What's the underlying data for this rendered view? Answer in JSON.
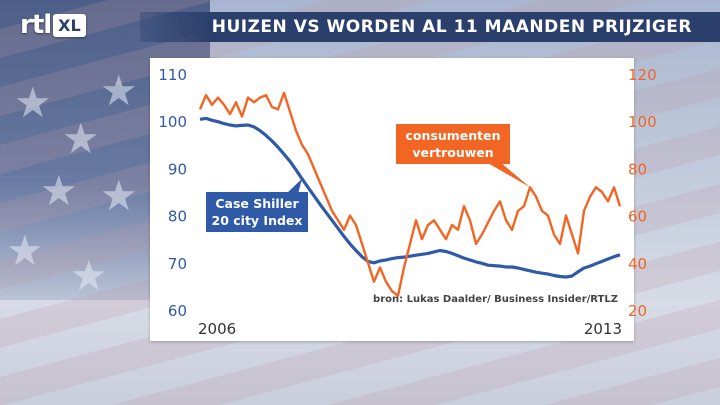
{
  "header": {
    "logo_text": "rtl",
    "logo_badge": "XL",
    "title": "HUIZEN VS WORDEN AL 11 MAANDEN PRIJZIGER"
  },
  "chart_data": {
    "type": "line",
    "title": "HUIZEN VS WORDEN AL 11 MAANDEN PRIJZIGER",
    "x_start_label": "2006",
    "x_end_label": "2013",
    "left_axis": {
      "ticks": [
        110,
        100,
        90,
        80,
        70,
        60
      ],
      "ylim": [
        60,
        110
      ],
      "color": "#2e5aa8"
    },
    "right_axis": {
      "ticks": [
        120,
        100,
        80,
        60,
        40,
        20
      ],
      "ylim": [
        20,
        120
      ],
      "color": "#f26522"
    },
    "source": "bron: Lukas Daalder/ Business Insider/RTLZ",
    "series": [
      {
        "name": "Case Shiller 20 city Index",
        "label": "Case Shiller\n20 city Index",
        "axis": "left",
        "color": "#2e5aa8",
        "values": [
          100.4,
          100.6,
          100.2,
          99.9,
          99.5,
          99.2,
          99.0,
          99.1,
          99.2,
          98.8,
          98.0,
          97.0,
          95.8,
          94.5,
          93.0,
          91.5,
          89.7,
          87.8,
          86.0,
          84.2,
          82.4,
          80.7,
          79.0,
          77.3,
          75.6,
          74.0,
          72.6,
          71.3,
          70.3,
          70.0,
          70.4,
          70.6,
          70.9,
          71.1,
          71.2,
          71.4,
          71.6,
          71.8,
          72.0,
          72.3,
          72.6,
          72.4,
          72.0,
          71.5,
          71.0,
          70.6,
          70.2,
          69.9,
          69.5,
          69.4,
          69.3,
          69.1,
          69.1,
          68.9,
          68.6,
          68.3,
          68.0,
          67.8,
          67.6,
          67.3,
          67.1,
          67.0,
          67.2,
          68.1,
          68.9,
          69.3,
          69.8,
          70.3,
          70.8,
          71.3,
          71.7
        ]
      },
      {
        "name": "consumenten vertrouwen",
        "label": "consumenten\nvertrouwen",
        "axis": "right",
        "color": "#f26522",
        "values": [
          105,
          111,
          107,
          110,
          107,
          103,
          108,
          102,
          110,
          108,
          110,
          111,
          106,
          105,
          112,
          104,
          96,
          90,
          86,
          80,
          74,
          68,
          62,
          58,
          54,
          60,
          56,
          48,
          40,
          32,
          38,
          32,
          28,
          26,
          38,
          48,
          58,
          50,
          56,
          58,
          54,
          50,
          56,
          54,
          64,
          58,
          48,
          52,
          57,
          62,
          66,
          58,
          54,
          62,
          64,
          72,
          68,
          62,
          60,
          52,
          48,
          60,
          52,
          44,
          62,
          68,
          72,
          70,
          66,
          72,
          64
        ]
      }
    ],
    "grid": false
  }
}
